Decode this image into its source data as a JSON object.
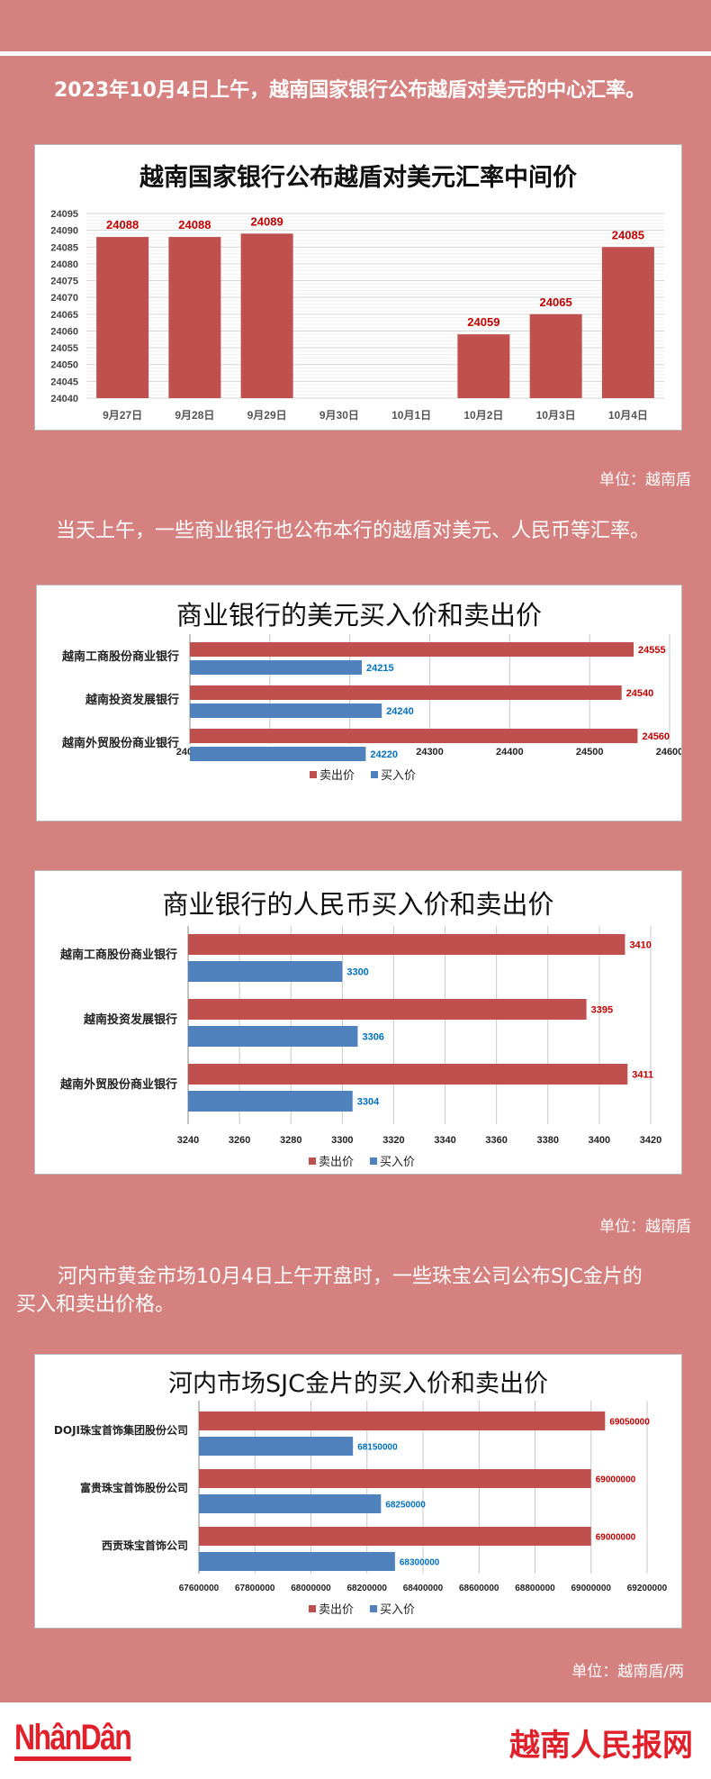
{
  "colors": {
    "background": "#d4817f",
    "sell": "#c0504d",
    "buy": "#4f81bd",
    "sell_label": "#c00000",
    "buy_label": "#0070c0",
    "mid_label": "#c00000"
  },
  "paragraphs": {
    "p1": "2023年10月4日上午，越南国家银行公布越盾对美元的中心汇率。",
    "p2": "当天上午，一些商业银行也公布本行的越盾对美元、人民币等汇率。",
    "p3_line1": "河内市黄金市场10月4日上午开盘时，一些珠宝公司公布SJC金片的",
    "p3_line2": "买入和卖出价格。"
  },
  "units": {
    "u1": "单位：越南盾",
    "u2": "单位：越南盾",
    "u3": "单位：越南盾/两"
  },
  "footer": {
    "logo": "NhânDân",
    "brand": "越南人民报网"
  },
  "chart_data": [
    {
      "type": "bar",
      "title": "越南国家银行公布越盾对美元汇率中间价",
      "categories": [
        "9月27日",
        "9月28日",
        "9月29日",
        "9月30日",
        "10月1日",
        "10月2日",
        "10月3日",
        "10月4日"
      ],
      "values": [
        24088,
        24088,
        24089,
        null,
        null,
        24059,
        24065,
        24085
      ],
      "ylim": [
        24040,
        24095
      ],
      "yticks": [
        24040,
        24045,
        24050,
        24055,
        24060,
        24065,
        24070,
        24075,
        24080,
        24085,
        24090,
        24095
      ],
      "grid": true
    },
    {
      "type": "bar",
      "orientation": "horizontal",
      "title": "商业银行的美元买入价和卖出价",
      "categories": [
        "越南工商股份商业银行",
        "越南投资发展银行",
        "越南外贸股份商业银行"
      ],
      "series": [
        {
          "name": "卖出价",
          "values": [
            24555,
            24540,
            24560
          ]
        },
        {
          "name": "买入价",
          "values": [
            24215,
            24240,
            24220
          ]
        }
      ],
      "xlim": [
        24000,
        24600
      ],
      "xticks": [
        24000,
        24100,
        24200,
        24300,
        24400,
        24500,
        24600
      ],
      "legend": "bottom",
      "grid": true
    },
    {
      "type": "bar",
      "orientation": "horizontal",
      "title": "商业银行的人民币买入价和卖出价",
      "categories": [
        "越南工商股份商业银行",
        "越南投资发展银行",
        "越南外贸股份商业银行"
      ],
      "series": [
        {
          "name": "卖出价",
          "values": [
            3410,
            3395,
            3411
          ]
        },
        {
          "name": "买入价",
          "values": [
            3300,
            3306,
            3304
          ]
        }
      ],
      "xlim": [
        3240,
        3420
      ],
      "xticks": [
        3240,
        3260,
        3280,
        3300,
        3320,
        3340,
        3360,
        3380,
        3400,
        3420
      ],
      "legend": "bottom",
      "grid": true
    },
    {
      "type": "bar",
      "orientation": "horizontal",
      "title": "河内市场SJC金片的买入价和卖出价",
      "categories": [
        "DOJI珠宝首饰集团股份公司",
        "富贵珠宝首饰股份公司",
        "西贡珠宝首饰公司"
      ],
      "series": [
        {
          "name": "卖出价",
          "values": [
            69050000,
            69000000,
            69000000
          ]
        },
        {
          "name": "买入价",
          "values": [
            68150000,
            68250000,
            68300000
          ]
        }
      ],
      "xlim": [
        67600000,
        69200000
      ],
      "xticks": [
        67600000,
        67800000,
        68000000,
        68200000,
        68400000,
        68600000,
        68800000,
        69000000,
        69200000
      ],
      "legend": "bottom",
      "grid": true
    }
  ]
}
